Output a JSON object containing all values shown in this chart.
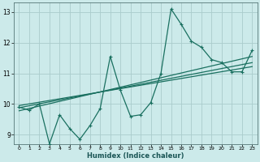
{
  "xlabel": "Humidex (Indice chaleur)",
  "bg_color": "#cceaea",
  "grid_color": "#aacccc",
  "line_color": "#1a7060",
  "xlim": [
    -0.5,
    23.5
  ],
  "ylim": [
    8.7,
    13.3
  ],
  "yticks": [
    9,
    10,
    11,
    12,
    13
  ],
  "xticks": [
    0,
    1,
    2,
    3,
    4,
    5,
    6,
    7,
    8,
    9,
    10,
    11,
    12,
    13,
    14,
    15,
    16,
    17,
    18,
    19,
    20,
    21,
    22,
    23
  ],
  "series1_x": [
    0,
    1,
    2,
    3,
    4,
    5,
    6,
    7,
    8,
    9,
    10,
    11,
    12,
    13,
    14,
    15,
    16,
    17,
    18,
    19,
    20,
    21,
    22,
    23
  ],
  "series1_y": [
    9.9,
    9.8,
    10.0,
    8.7,
    9.65,
    9.2,
    8.85,
    9.3,
    9.85,
    11.55,
    10.45,
    9.6,
    9.65,
    10.05,
    11.0,
    13.1,
    12.6,
    12.05,
    11.85,
    11.45,
    11.35,
    11.05,
    11.05,
    11.75
  ],
  "line2_x": [
    0,
    23
  ],
  "line2_y": [
    9.78,
    11.55
  ],
  "line3_x": [
    0,
    23
  ],
  "line3_y": [
    9.88,
    11.35
  ],
  "line4_x": [
    0,
    23
  ],
  "line4_y": [
    9.95,
    11.22
  ]
}
